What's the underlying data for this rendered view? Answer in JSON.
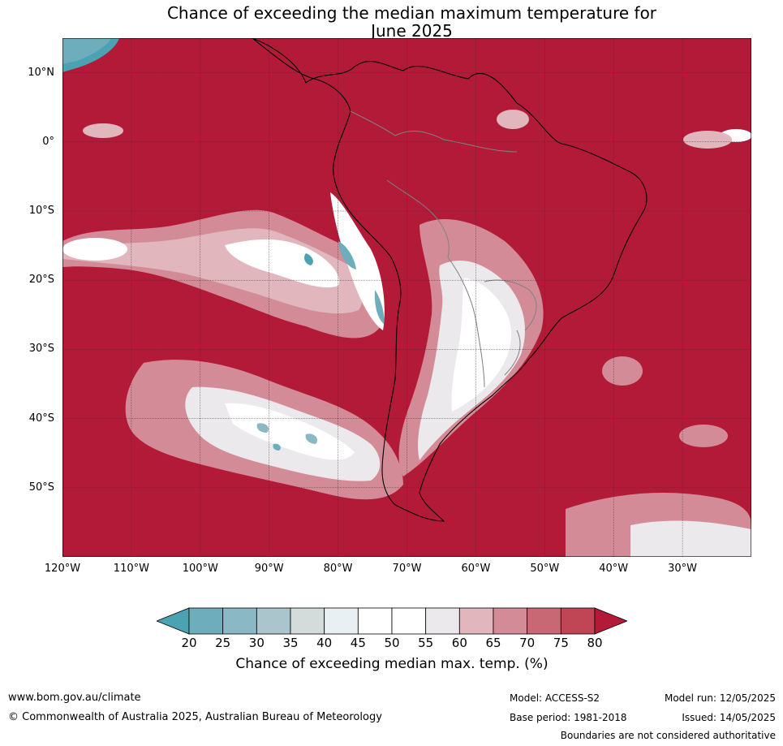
{
  "title": {
    "line1": "Chance of exceeding the median maximum temperature for",
    "line2": "June 2025"
  },
  "map": {
    "lat_labels": [
      "10°N",
      "0°",
      "10°S",
      "20°S",
      "30°S",
      "40°S",
      "50°S"
    ],
    "lat_values": [
      10,
      0,
      -10,
      -20,
      -30,
      -40,
      -50
    ],
    "lon_labels": [
      "120°W",
      "110°W",
      "100°W",
      "90°W",
      "80°W",
      "70°W",
      "60°W",
      "50°W",
      "40°W",
      "30°W"
    ],
    "lon_values": [
      -120,
      -110,
      -100,
      -90,
      -80,
      -70,
      -60,
      -50,
      -40,
      -30
    ],
    "extent": {
      "lon": [
        -120,
        -20
      ],
      "lat": [
        -60,
        15
      ]
    },
    "colors": {
      "ocean_high": "#b31a37",
      "land_border": "#000000",
      "country_border": "#808080",
      "grid": "#333333"
    }
  },
  "colorbar": {
    "ticks": [
      "20",
      "25",
      "30",
      "35",
      "40",
      "45",
      "50",
      "55",
      "60",
      "65",
      "70",
      "75",
      "80"
    ],
    "colors": [
      "#4aa2b2",
      "#6eadbb",
      "#8ab9c5",
      "#aac6cc",
      "#d3dcdb",
      "#e9f0f3",
      "#ffffff",
      "#ffffff",
      "#ebe9eb",
      "#e1b6bd",
      "#d38c97",
      "#c86874",
      "#c04555",
      "#b31a37"
    ],
    "title": "Chance of exceeding median max. temp. (%)"
  },
  "footer": {
    "website": "www.bom.gov.au/climate",
    "copyright": "© Commonwealth of Australia 2025, Australian Bureau of Meteorology",
    "model": "Model: ACCESS-S2",
    "model_run": "Model run: 12/05/2025",
    "base_period": "Base period: 1981-2018",
    "issued": "Issued: 14/05/2025",
    "disclaimer": "Boundaries are not considered authoritative"
  }
}
